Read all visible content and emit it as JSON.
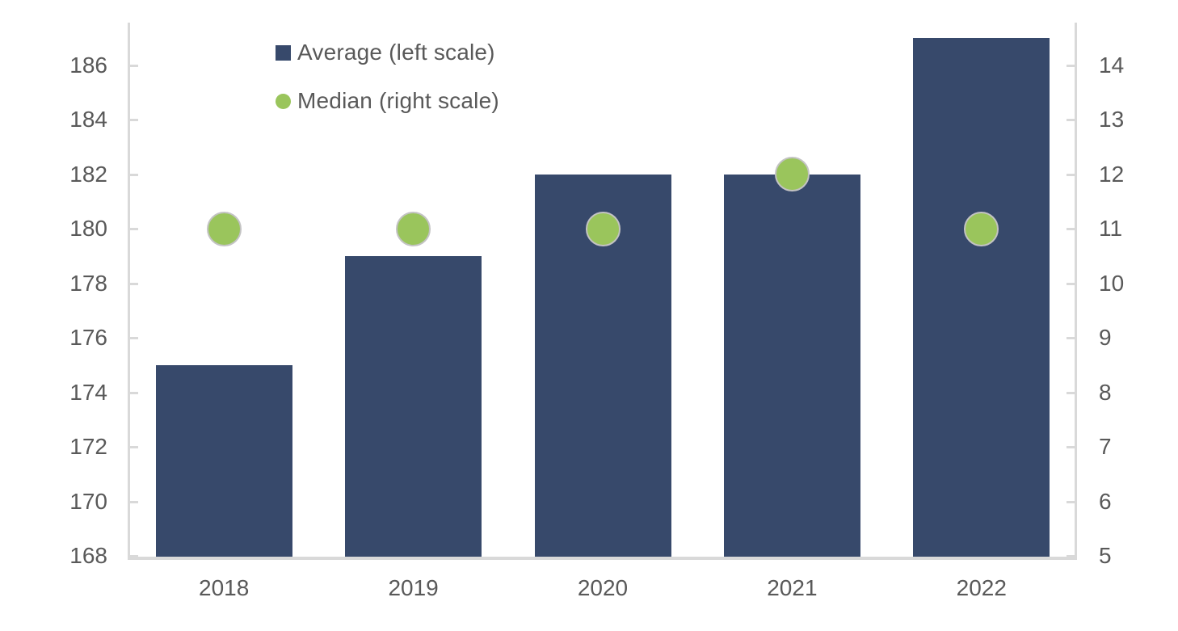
{
  "chart_data": {
    "type": "combo",
    "categories": [
      "2018",
      "2019",
      "2020",
      "2021",
      "2022"
    ],
    "series": [
      {
        "name": "Average (left scale)",
        "type": "bar",
        "axis": "left",
        "color": "#37496b",
        "values": [
          175,
          179,
          182,
          182,
          187
        ]
      },
      {
        "name": "Median (right scale)",
        "type": "scatter",
        "axis": "right",
        "color": "#9ac55c",
        "values": [
          11,
          11,
          11,
          12,
          11
        ]
      }
    ],
    "left_axis": {
      "min": 168,
      "max": 187.5,
      "ticks": [
        168,
        170,
        172,
        174,
        176,
        178,
        180,
        182,
        184,
        186
      ]
    },
    "right_axis": {
      "min": 5,
      "max": 14.8,
      "ticks": [
        5,
        6,
        7,
        8,
        9,
        10,
        11,
        12,
        13,
        14
      ]
    },
    "legend": [
      {
        "label": "Average (left scale)",
        "swatch": "square",
        "color": "#37496b"
      },
      {
        "label": "Median (right scale)",
        "swatch": "circle",
        "color": "#9ac55c"
      }
    ],
    "title": "",
    "grid": false,
    "legend_position": "top-left-inside",
    "colors": {
      "axis": "#d9d9d9",
      "text": "#595959",
      "bar": "#37496b",
      "marker": "#9ac55c",
      "background": "#ffffff"
    }
  }
}
